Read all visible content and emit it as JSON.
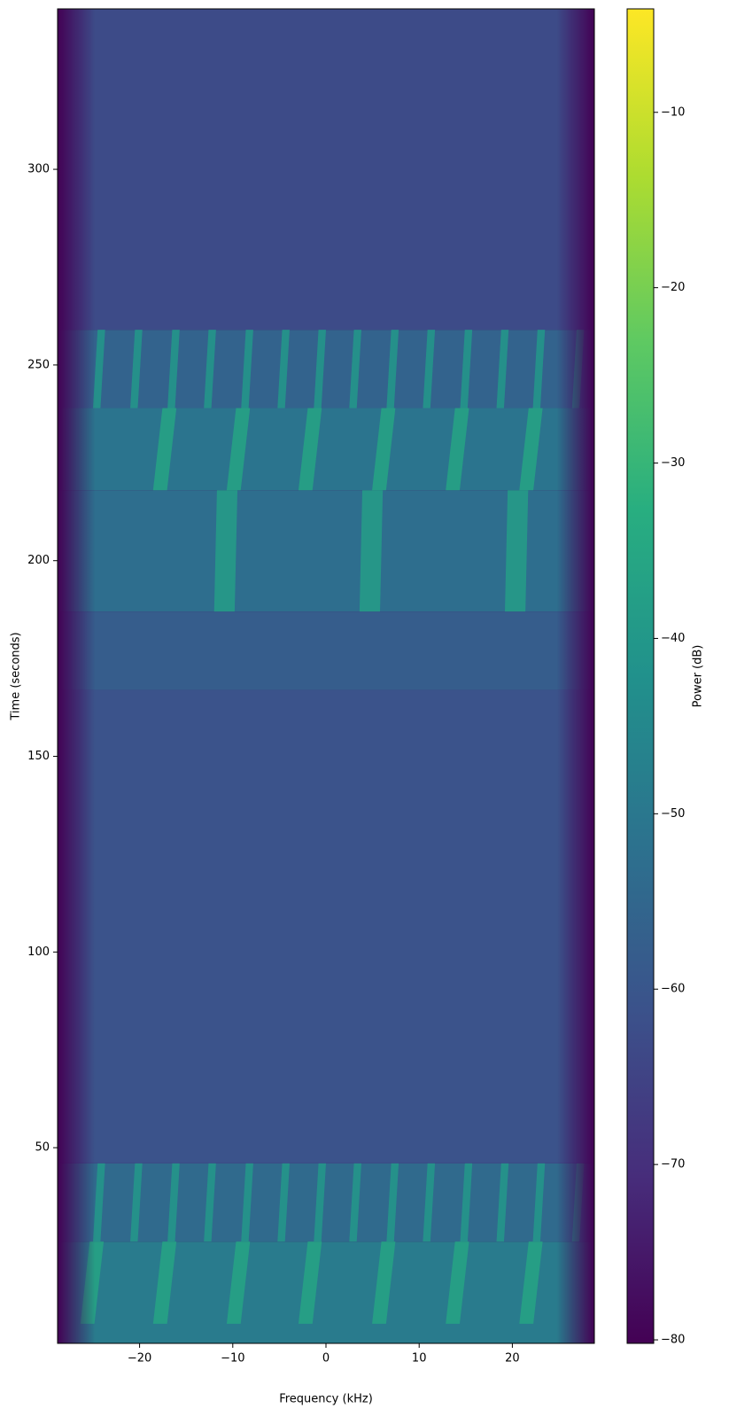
{
  "chart_data": {
    "type": "spectrogram",
    "xlabel": "Frequency (kHz)",
    "ylabel": "Time (seconds)",
    "colorbar_label": "Power (dB)",
    "colormap": "viridis",
    "xlim": [
      -28.8,
      28.8
    ],
    "ylim": [
      0,
      341
    ],
    "clim": [
      -80.2,
      -4.1
    ],
    "xticks": [
      {
        "value": -20,
        "label": "−20"
      },
      {
        "value": -10,
        "label": "−10"
      },
      0,
      10,
      20
    ],
    "yticks": [
      50,
      100,
      150,
      200,
      250,
      300
    ],
    "cticks": [
      {
        "value": -10,
        "label": "−10"
      },
      {
        "value": -20,
        "label": "−20"
      },
      {
        "value": -30,
        "label": "−30"
      },
      {
        "value": -40,
        "label": "−40"
      },
      {
        "value": -50,
        "label": "−50"
      },
      {
        "value": -60,
        "label": "−60"
      },
      {
        "value": -70,
        "label": "−70"
      },
      {
        "value": -80,
        "label": "−80"
      }
    ],
    "background_power": -80,
    "segments": [
      {
        "t": [
          0,
          26
        ],
        "power": -49
      },
      {
        "t": [
          26,
          46
        ],
        "power": -54
      },
      {
        "t": [
          46,
          167
        ],
        "power": -61
      },
      {
        "t": [
          167,
          187
        ],
        "power": -58
      },
      {
        "t": [
          187,
          218
        ],
        "power": -53
      },
      {
        "t": [
          218,
          239
        ],
        "power": -51
      },
      {
        "t": [
          239,
          259
        ],
        "power": -56
      },
      {
        "t": [
          259,
          341
        ],
        "power": -63
      }
    ],
    "stripes": [
      {
        "t": [
          5,
          26
        ],
        "f": [
          -25.6,
          -17.8,
          -9.9,
          -2.2,
          5.7,
          13.6,
          21.5
        ],
        "width": 1.5,
        "slant": 1.0,
        "power": -36
      },
      {
        "t": [
          26,
          46
        ],
        "f": [
          -24.6,
          -20.6,
          -16.6,
          -12.7,
          -8.7,
          -4.8,
          -0.9,
          2.9,
          6.9,
          10.8,
          14.8,
          18.7,
          22.6,
          26.8
        ],
        "width": 0.8,
        "slant": 0.5,
        "power": -40
      },
      {
        "t": [
          187,
          218
        ],
        "f": [
          -10.9,
          4.7,
          20.3
        ],
        "width": 2.2,
        "slant": 0.3,
        "power": -38
      },
      {
        "t": [
          218,
          239
        ],
        "f": [
          -17.8,
          -9.9,
          -2.2,
          5.7,
          13.6,
          21.5
        ],
        "width": 1.5,
        "slant": 1.0,
        "power": -36
      },
      {
        "t": [
          239,
          259
        ],
        "f": [
          -24.6,
          -20.6,
          -16.6,
          -12.7,
          -8.7,
          -4.8,
          -0.9,
          2.9,
          6.9,
          10.8,
          14.8,
          18.7,
          22.6,
          26.8
        ],
        "width": 0.8,
        "slant": 0.5,
        "power": -40
      }
    ]
  }
}
